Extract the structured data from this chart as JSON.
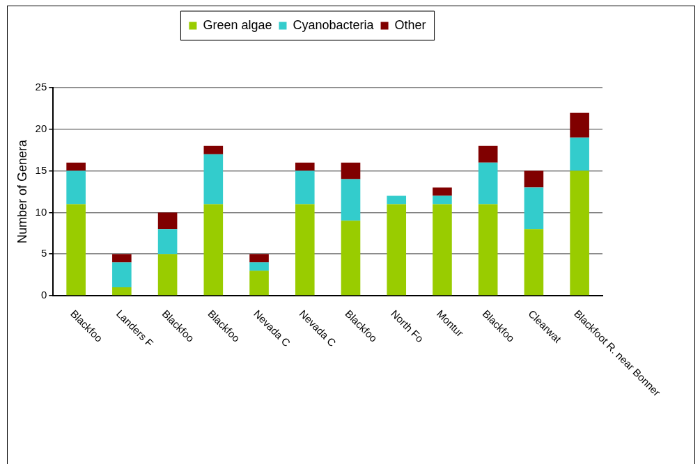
{
  "chart_data": {
    "type": "bar",
    "stacked": true,
    "ylabel": "Number of Genera",
    "categories": [
      "Blackfoo",
      "Landers F",
      "Blackfoo",
      "Blackfoo",
      "Nevada C",
      "Nevada C",
      "Blackfoo",
      "North Fo",
      "Montur",
      "Blackfoo",
      "Clearwat",
      "Blackfoot R. near Bonner"
    ],
    "series": [
      {
        "name": "Green algae",
        "color": "#99cc00",
        "values": [
          11,
          1,
          5,
          11,
          3,
          11,
          9,
          11,
          11,
          11,
          8,
          15
        ]
      },
      {
        "name": "Cyanobacteria",
        "color": "#33cccc",
        "values": [
          4,
          3,
          3,
          6,
          1,
          4,
          5,
          1,
          1,
          5,
          5,
          4
        ]
      },
      {
        "name": "Other",
        "color": "#800000",
        "values": [
          1,
          1,
          2,
          1,
          1,
          1,
          2,
          0,
          1,
          2,
          2,
          3
        ]
      }
    ],
    "ylim": [
      0,
      25
    ],
    "yticks": [
      0,
      5,
      10,
      15,
      20,
      25
    ],
    "grid": "y",
    "legend": "top"
  }
}
